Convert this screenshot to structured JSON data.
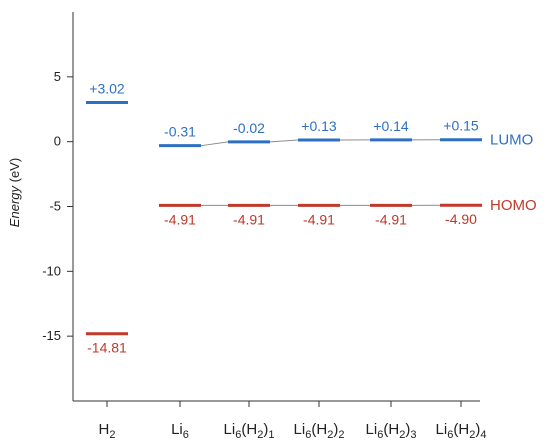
{
  "chart_data": {
    "type": "line",
    "categories": [
      {
        "base": "H",
        "sub": "2",
        "tail": "",
        "tailsub": ""
      },
      {
        "base": "Li",
        "sub": "6",
        "tail": "",
        "tailsub": ""
      },
      {
        "base": "Li",
        "sub": "6",
        "tail": "(H",
        "tailsub": "2",
        "close": ")1"
      },
      {
        "base": "Li",
        "sub": "6",
        "tail": "(H",
        "tailsub": "2",
        "close": ")2"
      },
      {
        "base": "Li",
        "sub": "6",
        "tail": "(H",
        "tailsub": "2",
        "close": ")3"
      },
      {
        "base": "Li",
        "sub": "6",
        "tail": "(H",
        "tailsub": "2",
        "close": ")4"
      }
    ],
    "category_text": [
      "H2",
      "Li6",
      "Li6(H2)1",
      "Li6(H2)2",
      "Li6(H2)3",
      "Li6(H2)4"
    ],
    "ylabel_italic": "Energy",
    "ylabel_unit": " (eV)",
    "ylim": [
      -20,
      10
    ],
    "yticks": [
      5,
      0,
      -5,
      -10,
      -15
    ],
    "ytick_labels": [
      "5",
      "0",
      "-5",
      "-10",
      "-15"
    ],
    "series": [
      {
        "name": "LUMO",
        "color": "#2e6fc4",
        "values": [
          3.02,
          -0.31,
          -0.02,
          0.13,
          0.14,
          0.15
        ],
        "labels": [
          "+3.02",
          "-0.31",
          "-0.02",
          "+0.13",
          "+0.14",
          "+0.15"
        ]
      },
      {
        "name": "HOMO",
        "color": "#c0392b",
        "values": [
          -14.81,
          -4.91,
          -4.91,
          -4.91,
          -4.91,
          -4.9
        ],
        "labels": [
          "-14.81",
          "-4.91",
          "-4.91",
          "-4.91",
          "-4.91",
          "-4.90"
        ]
      }
    ],
    "connector_color": "#8c8c8c",
    "grid": false,
    "legend": "right, inline series labels"
  }
}
